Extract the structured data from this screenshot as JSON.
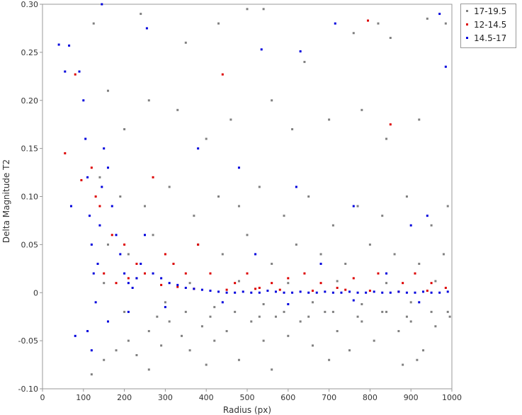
{
  "chart_data": {
    "type": "scatter",
    "title": "",
    "xlabel": "Radius (px)",
    "ylabel": "Delta Magnitude T2",
    "xlim": [
      0,
      1000
    ],
    "ylim": [
      -0.1,
      0.3
    ],
    "xticks": [
      0,
      100,
      200,
      300,
      400,
      500,
      600,
      700,
      800,
      900,
      1000
    ],
    "yticks": [
      -0.1,
      -0.05,
      0,
      0.05,
      0.1,
      0.15,
      0.2,
      0.25,
      0.3
    ],
    "ytick_labels": [
      "-0.10",
      "-0.05",
      "0",
      "0.05",
      "0.10",
      "0.15",
      "0.20",
      "0.25",
      "0.30"
    ],
    "grid": false,
    "legend_position": "top-right-outside",
    "series": [
      {
        "name": "17-19.5",
        "color": "#808080",
        "points": [
          [
            120,
            -0.085
          ],
          [
            150,
            -0.07
          ],
          [
            180,
            -0.06
          ],
          [
            210,
            -0.05
          ],
          [
            230,
            -0.065
          ],
          [
            260,
            -0.04
          ],
          [
            290,
            -0.055
          ],
          [
            310,
            -0.03
          ],
          [
            340,
            -0.045
          ],
          [
            360,
            -0.06
          ],
          [
            390,
            -0.035
          ],
          [
            420,
            -0.05
          ],
          [
            450,
            -0.04
          ],
          [
            480,
            -0.07
          ],
          [
            510,
            -0.03
          ],
          [
            540,
            -0.05
          ],
          [
            570,
            -0.025
          ],
          [
            600,
            -0.045
          ],
          [
            630,
            -0.03
          ],
          [
            660,
            -0.055
          ],
          [
            690,
            -0.02
          ],
          [
            720,
            -0.04
          ],
          [
            750,
            -0.06
          ],
          [
            780,
            -0.03
          ],
          [
            810,
            -0.05
          ],
          [
            840,
            -0.02
          ],
          [
            870,
            -0.04
          ],
          [
            900,
            -0.03
          ],
          [
            930,
            -0.06
          ],
          [
            960,
            -0.035
          ],
          [
            990,
            -0.02
          ],
          [
            125,
            0.28
          ],
          [
            240,
            0.29
          ],
          [
            350,
            0.26
          ],
          [
            430,
            0.28
          ],
          [
            500,
            0.295
          ],
          [
            540,
            0.295
          ],
          [
            640,
            0.24
          ],
          [
            760,
            0.27
          ],
          [
            820,
            0.28
          ],
          [
            850,
            0.265
          ],
          [
            940,
            0.285
          ],
          [
            985,
            0.28
          ],
          [
            160,
            0.21
          ],
          [
            200,
            0.17
          ],
          [
            260,
            0.2
          ],
          [
            330,
            0.19
          ],
          [
            400,
            0.16
          ],
          [
            460,
            0.18
          ],
          [
            560,
            0.2
          ],
          [
            610,
            0.17
          ],
          [
            700,
            0.18
          ],
          [
            780,
            0.19
          ],
          [
            840,
            0.16
          ],
          [
            920,
            0.18
          ],
          [
            140,
            0.12
          ],
          [
            190,
            0.1
          ],
          [
            250,
            0.09
          ],
          [
            310,
            0.11
          ],
          [
            370,
            0.08
          ],
          [
            430,
            0.1
          ],
          [
            480,
            0.09
          ],
          [
            530,
            0.11
          ],
          [
            590,
            0.08
          ],
          [
            650,
            0.1
          ],
          [
            710,
            0.07
          ],
          [
            770,
            0.09
          ],
          [
            830,
            0.08
          ],
          [
            890,
            0.1
          ],
          [
            950,
            0.07
          ],
          [
            990,
            0.09
          ],
          [
            160,
            0.05
          ],
          [
            210,
            0.04
          ],
          [
            270,
            0.06
          ],
          [
            320,
            0.03
          ],
          [
            380,
            0.05
          ],
          [
            440,
            0.04
          ],
          [
            500,
            0.06
          ],
          [
            560,
            0.03
          ],
          [
            620,
            0.05
          ],
          [
            680,
            0.04
          ],
          [
            740,
            0.03
          ],
          [
            800,
            0.05
          ],
          [
            860,
            0.04
          ],
          [
            920,
            0.03
          ],
          [
            980,
            0.04
          ],
          [
            150,
            0.01
          ],
          [
            230,
            0.015
          ],
          [
            300,
            -0.01
          ],
          [
            360,
            0.01
          ],
          [
            420,
            -0.015
          ],
          [
            480,
            0.012
          ],
          [
            540,
            -0.012
          ],
          [
            600,
            0.01
          ],
          [
            660,
            -0.01
          ],
          [
            720,
            0.012
          ],
          [
            780,
            -0.012
          ],
          [
            840,
            0.01
          ],
          [
            900,
            -0.01
          ],
          [
            960,
            0.012
          ],
          [
            200,
            -0.02
          ],
          [
            280,
            -0.025
          ],
          [
            350,
            -0.02
          ],
          [
            410,
            -0.025
          ],
          [
            470,
            -0.02
          ],
          [
            530,
            -0.025
          ],
          [
            590,
            -0.02
          ],
          [
            650,
            -0.025
          ],
          [
            710,
            -0.02
          ],
          [
            770,
            -0.025
          ],
          [
            830,
            -0.02
          ],
          [
            890,
            -0.025
          ],
          [
            950,
            -0.02
          ],
          [
            995,
            -0.025
          ],
          [
            260,
            -0.08
          ],
          [
            400,
            -0.075
          ],
          [
            560,
            -0.08
          ],
          [
            700,
            -0.07
          ],
          [
            880,
            -0.075
          ],
          [
            915,
            -0.07
          ]
        ]
      },
      {
        "name": "12-14.5",
        "color": "#dd0000",
        "points": [
          [
            55,
            0.145
          ],
          [
            80,
            0.227
          ],
          [
            95,
            0.117
          ],
          [
            120,
            0.13
          ],
          [
            130,
            0.1
          ],
          [
            140,
            0.09
          ],
          [
            150,
            0.02
          ],
          [
            170,
            0.06
          ],
          [
            200,
            0.05
          ],
          [
            230,
            0.03
          ],
          [
            250,
            0.02
          ],
          [
            270,
            0.12
          ],
          [
            300,
            0.04
          ],
          [
            320,
            0.03
          ],
          [
            350,
            0.02
          ],
          [
            380,
            0.05
          ],
          [
            410,
            0.02
          ],
          [
            440,
            0.227
          ],
          [
            470,
            0.01
          ],
          [
            500,
            0.02
          ],
          [
            530,
            0.005
          ],
          [
            560,
            0.01
          ],
          [
            600,
            0.015
          ],
          [
            640,
            0.02
          ],
          [
            680,
            0.01
          ],
          [
            720,
            0.005
          ],
          [
            760,
            0.015
          ],
          [
            795,
            0.283
          ],
          [
            820,
            0.02
          ],
          [
            850,
            0.175
          ],
          [
            880,
            0.01
          ],
          [
            910,
            0.02
          ],
          [
            950,
            0.01
          ],
          [
            985,
            0.005
          ],
          [
            180,
            0.01
          ],
          [
            210,
            0.015
          ],
          [
            290,
            0.008
          ],
          [
            330,
            0.006
          ],
          [
            370,
            0.004
          ],
          [
            450,
            0.003
          ],
          [
            520,
            0.004
          ],
          [
            580,
            0.003
          ],
          [
            660,
            0.002
          ],
          [
            740,
            0.003
          ],
          [
            800,
            0.002
          ],
          [
            870,
            0.001
          ],
          [
            940,
            0.002
          ]
        ]
      },
      {
        "name": "14.5-17",
        "color": "#0000dd",
        "points": [
          [
            40,
            0.258
          ],
          [
            55,
            0.23
          ],
          [
            65,
            0.257
          ],
          [
            70,
            0.09
          ],
          [
            80,
            -0.045
          ],
          [
            90,
            0.23
          ],
          [
            100,
            0.2
          ],
          [
            105,
            0.16
          ],
          [
            110,
            0.12
          ],
          [
            115,
            0.08
          ],
          [
            120,
            0.05
          ],
          [
            125,
            0.02
          ],
          [
            130,
            -0.01
          ],
          [
            135,
            0.03
          ],
          [
            140,
            0.07
          ],
          [
            145,
            0.11
          ],
          [
            150,
            0.15
          ],
          [
            160,
            0.13
          ],
          [
            170,
            0.09
          ],
          [
            180,
            0.06
          ],
          [
            190,
            0.04
          ],
          [
            200,
            0.02
          ],
          [
            210,
            0.01
          ],
          [
            220,
            0.005
          ],
          [
            230,
            0.015
          ],
          [
            240,
            0.03
          ],
          [
            250,
            0.06
          ],
          [
            255,
            0.275
          ],
          [
            270,
            0.02
          ],
          [
            290,
            0.015
          ],
          [
            310,
            0.01
          ],
          [
            330,
            0.008
          ],
          [
            350,
            0.005
          ],
          [
            370,
            0.004
          ],
          [
            390,
            0.003
          ],
          [
            410,
            0.002
          ],
          [
            430,
            0.001
          ],
          [
            450,
            0.0
          ],
          [
            470,
            0.0
          ],
          [
            490,
            0.001
          ],
          [
            510,
            0.0
          ],
          [
            530,
            0.0
          ],
          [
            550,
            0.002
          ],
          [
            570,
            0.001
          ],
          [
            590,
            0.0
          ],
          [
            610,
            0.0
          ],
          [
            630,
            0.001
          ],
          [
            650,
            0.0
          ],
          [
            670,
            0.0
          ],
          [
            690,
            0.001
          ],
          [
            710,
            0.0
          ],
          [
            730,
            0.0
          ],
          [
            750,
            0.001
          ],
          [
            770,
            0.0
          ],
          [
            790,
            0.0
          ],
          [
            810,
            0.001
          ],
          [
            830,
            0.0
          ],
          [
            850,
            0.0
          ],
          [
            870,
            0.001
          ],
          [
            890,
            0.0
          ],
          [
            910,
            0.0
          ],
          [
            930,
            0.001
          ],
          [
            950,
            0.0
          ],
          [
            970,
            0.0
          ],
          [
            990,
            0.001
          ],
          [
            145,
            0.3
          ],
          [
            535,
            0.253
          ],
          [
            630,
            0.251
          ],
          [
            715,
            0.28
          ],
          [
            970,
            0.29
          ],
          [
            985,
            0.235
          ],
          [
            380,
            0.15
          ],
          [
            480,
            0.13
          ],
          [
            620,
            0.11
          ],
          [
            760,
            0.09
          ],
          [
            900,
            0.07
          ],
          [
            940,
            0.08
          ],
          [
            520,
            0.04
          ],
          [
            680,
            0.03
          ],
          [
            840,
            0.02
          ],
          [
            300,
            -0.015
          ],
          [
            440,
            -0.01
          ],
          [
            600,
            -0.012
          ],
          [
            760,
            -0.008
          ],
          [
            920,
            -0.01
          ],
          [
            210,
            -0.02
          ],
          [
            160,
            -0.03
          ],
          [
            120,
            -0.06
          ],
          [
            110,
            -0.04
          ]
        ]
      }
    ]
  }
}
